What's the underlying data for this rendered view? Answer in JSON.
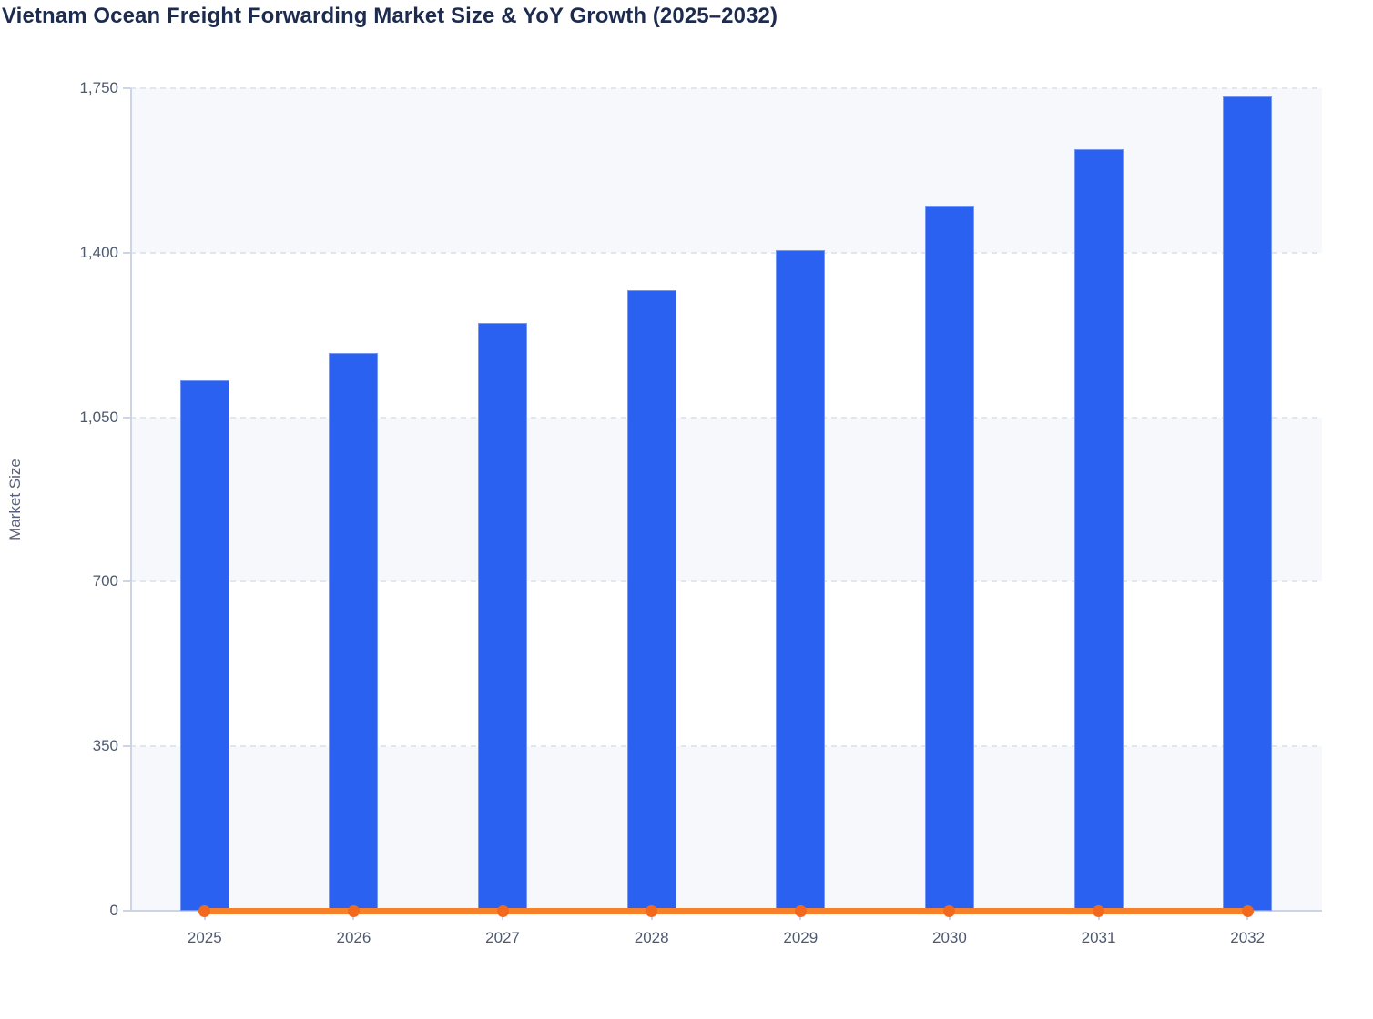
{
  "title": "Vietnam Ocean Freight Forwarding Market Size & YoY Growth (2025–2032)",
  "y_axis": {
    "label": "Market Size",
    "min": 0,
    "max": 1750,
    "step": 350,
    "tick_labels": [
      "0",
      "350",
      "700",
      "1,050",
      "1,400",
      "1,750"
    ]
  },
  "x_axis": {
    "tick_labels": [
      "2025",
      "2026",
      "2027",
      "2028",
      "2029",
      "2030",
      "2031",
      "2032"
    ]
  },
  "chart_data": {
    "type": "bar",
    "title": "Vietnam Ocean Freight Forwarding Market Size & YoY Growth (2025–2032)",
    "categories": [
      "2025",
      "2026",
      "2027",
      "2028",
      "2029",
      "2030",
      "2031",
      "2032"
    ],
    "series": [
      {
        "name": "Market Size",
        "type": "bar",
        "values": [
          1128,
          1186,
          1251,
          1321,
          1406,
          1500,
          1621,
          1733
        ],
        "color": "#2b61f0"
      },
      {
        "name": "YoY Growth",
        "type": "line",
        "values": [
          0,
          0,
          0,
          0,
          0,
          0,
          0,
          0
        ],
        "note": "line renders flat at ~0 on the visible Market Size axis",
        "color": "#f7812a",
        "marker_color": "#f2691d"
      }
    ],
    "xlabel": "",
    "ylabel": "Market Size",
    "ylim": [
      0,
      1750
    ],
    "ytick_step": 350,
    "grid": "horizontal-dashed",
    "legend_position": "none",
    "background_bands": "alternating light stripes between gridline pairs"
  },
  "colors": {
    "bar": "#2b61f0",
    "line": "#f7812a",
    "marker": "#f2691d",
    "band": "#f6f8fb",
    "grid": "#e2e6ed",
    "axis": "#ccd4e6",
    "title": "#1d2c4e",
    "tick_label": "#4d5970",
    "axis_label": "#57607a",
    "background": "#ffffff"
  }
}
